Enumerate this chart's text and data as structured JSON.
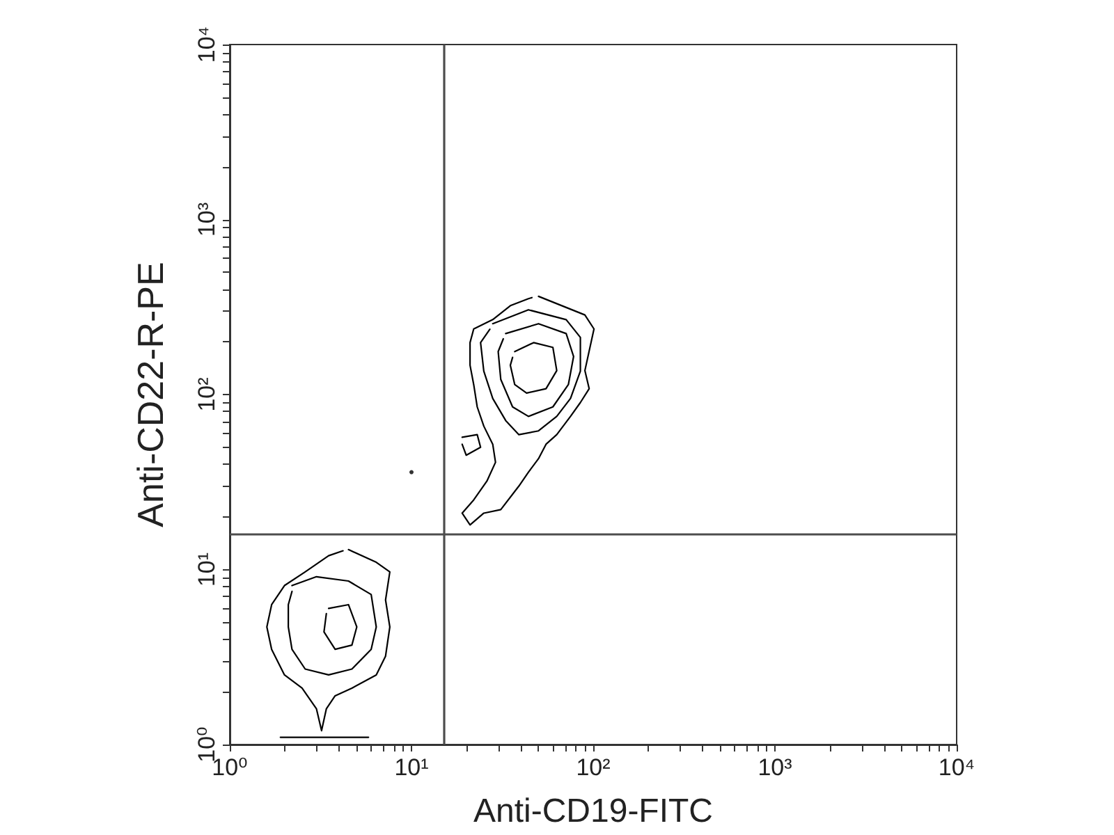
{
  "chart_data": {
    "type": "line",
    "xlabel": "Anti-CD19-FITC",
    "ylabel": "Anti-CD22-R-PE",
    "log": "xy",
    "marker": "none",
    "line_style": "solid",
    "xlim": [
      1,
      10000
    ],
    "ylim": [
      1,
      10000
    ],
    "xticks": [
      {
        "value": 1,
        "label": "10⁰"
      },
      {
        "value": 2,
        "label": null
      },
      {
        "value": 3,
        "label": null
      },
      {
        "value": 4,
        "label": null
      },
      {
        "value": 5,
        "label": null
      },
      {
        "value": 6,
        "label": null
      },
      {
        "value": 7,
        "label": null
      },
      {
        "value": 8,
        "label": null
      },
      {
        "value": 9,
        "label": null
      },
      {
        "value": 10,
        "label": "10¹"
      },
      {
        "value": 20,
        "label": null
      },
      {
        "value": 30,
        "label": null
      },
      {
        "value": 40,
        "label": null
      },
      {
        "value": 50,
        "label": null
      },
      {
        "value": 60,
        "label": null
      },
      {
        "value": 70,
        "label": null
      },
      {
        "value": 80,
        "label": null
      },
      {
        "value": 90,
        "label": null
      },
      {
        "value": 100,
        "label": "10²"
      },
      {
        "value": 200,
        "label": null
      },
      {
        "value": 300,
        "label": null
      },
      {
        "value": 400,
        "label": null
      },
      {
        "value": 500,
        "label": null
      },
      {
        "value": 600,
        "label": null
      },
      {
        "value": 700,
        "label": null
      },
      {
        "value": 800,
        "label": null
      },
      {
        "value": 900,
        "label": null
      },
      {
        "value": 1000,
        "label": "10³"
      },
      {
        "value": 2000,
        "label": null
      },
      {
        "value": 3000,
        "label": null
      },
      {
        "value": 4000,
        "label": null
      },
      {
        "value": 5000,
        "label": null
      },
      {
        "value": 6000,
        "label": null
      },
      {
        "value": 7000,
        "label": null
      },
      {
        "value": 8000,
        "label": null
      },
      {
        "value": 9000,
        "label": null
      },
      {
        "value": 10000,
        "label": "10⁴"
      }
    ],
    "yticks": [
      {
        "value": 1,
        "label": "10⁰"
      },
      {
        "value": 2,
        "label": null
      },
      {
        "value": 3,
        "label": null
      },
      {
        "value": 4,
        "label": null
      },
      {
        "value": 5,
        "label": null
      },
      {
        "value": 6,
        "label": null
      },
      {
        "value": 7,
        "label": null
      },
      {
        "value": 8,
        "label": null
      },
      {
        "value": 9,
        "label": null
      },
      {
        "value": 10,
        "label": "10¹"
      },
      {
        "value": 20,
        "label": null
      },
      {
        "value": 30,
        "label": null
      },
      {
        "value": 40,
        "label": null
      },
      {
        "value": 50,
        "label": null
      },
      {
        "value": 60,
        "label": null
      },
      {
        "value": 70,
        "label": null
      },
      {
        "value": 80,
        "label": null
      },
      {
        "value": 90,
        "label": null
      },
      {
        "value": 100,
        "label": "10²"
      },
      {
        "value": 200,
        "label": null
      },
      {
        "value": 300,
        "label": null
      },
      {
        "value": 400,
        "label": null
      },
      {
        "value": 500,
        "label": null
      },
      {
        "value": 600,
        "label": null
      },
      {
        "value": 700,
        "label": null
      },
      {
        "value": 800,
        "label": null
      },
      {
        "value": 900,
        "label": null
      },
      {
        "value": 1000,
        "label": "10³"
      },
      {
        "value": 2000,
        "label": null
      },
      {
        "value": 3000,
        "label": null
      },
      {
        "value": 4000,
        "label": null
      },
      {
        "value": 5000,
        "label": null
      },
      {
        "value": 6000,
        "label": null
      },
      {
        "value": 7000,
        "label": null
      },
      {
        "value": 8000,
        "label": null
      },
      {
        "value": 9000,
        "label": null
      },
      {
        "value": 10000,
        "label": "10⁴"
      }
    ],
    "ref_lines": [
      {
        "axis": "x",
        "value": 15,
        "color": "#4d4d4d"
      },
      {
        "axis": "y",
        "value": 16,
        "color": "#4d4d4d"
      }
    ],
    "series": [
      {
        "color": "#000000",
        "x": [
          50,
          90,
          101,
          90,
          95,
          85,
          75,
          63,
          55,
          50,
          44,
          39,
          31,
          25,
          21,
          19,
          22,
          26,
          29,
          28,
          25,
          23,
          22,
          21,
          21,
          22,
          28,
          35,
          44,
          46
        ],
        "values": [
          364,
          285,
          237,
          137,
          108,
          90,
          75,
          59,
          52,
          43,
          36,
          30,
          22,
          21,
          18,
          21,
          25,
          32,
          41,
          52,
          66,
          85,
          114,
          147,
          198,
          237,
          268,
          322,
          353,
          358
        ]
      },
      {
        "color": "#000000",
        "x": [
          19,
          23,
          24,
          20,
          19
        ],
        "values": [
          57,
          59,
          50,
          45,
          52
        ]
      },
      {
        "color": "#000000",
        "x": [
          28,
          44,
          71,
          85,
          85,
          75,
          63,
          50,
          39,
          33,
          28,
          25,
          24,
          27
        ],
        "values": [
          254,
          305,
          268,
          212,
          136,
          95,
          75,
          62,
          59,
          71,
          95,
          136,
          198,
          236
        ]
      },
      {
        "color": "#000000",
        "x": [
          33,
          50,
          71,
          78,
          73,
          60,
          44,
          36,
          31,
          30,
          32
        ],
        "values": [
          223,
          254,
          223,
          165,
          114,
          85,
          75,
          85,
          122,
          176,
          208
        ]
      },
      {
        "color": "#000000",
        "x": [
          37,
          47,
          60,
          63,
          55,
          43,
          37,
          35,
          36
        ],
        "values": [
          176,
          198,
          186,
          137,
          108,
          102,
          114,
          147,
          163
        ]
      },
      {
        "color": "#000000",
        "x": [
          4.5,
          6.4,
          7.6,
          7.2,
          7.6,
          7.2,
          6.4,
          4.7,
          3.8,
          3.4,
          3.2,
          3.0,
          2.5,
          2.0,
          1.7,
          1.6,
          1.7,
          2.0,
          2.6,
          3.5,
          4.2
        ],
        "values": [
          13,
          11,
          9.7,
          6.7,
          4.7,
          3.2,
          2.5,
          2.1,
          1.9,
          1.6,
          1.2,
          1.6,
          2.1,
          2.5,
          3.5,
          4.7,
          6.3,
          8.1,
          9.7,
          12,
          12.8
        ]
      },
      {
        "color": "#000000",
        "x": [
          2.2,
          3.0,
          4.5,
          6.0,
          6.4,
          6.0,
          4.7,
          3.5,
          2.6,
          2.2,
          2.1,
          2.1,
          2.2
        ],
        "values": [
          8.1,
          9.1,
          8.6,
          7.2,
          4.7,
          3.5,
          2.7,
          2.5,
          2.7,
          3.5,
          4.7,
          6.3,
          7.5
        ]
      },
      {
        "color": "#000000",
        "x": [
          3.5,
          4.5,
          5.0,
          4.7,
          3.8,
          3.3,
          3.4
        ],
        "values": [
          6.0,
          6.3,
          4.7,
          3.7,
          3.5,
          4.4,
          5.6
        ]
      },
      {
        "color": "#000000",
        "x": [
          1.9,
          5.8
        ],
        "values": [
          1.1,
          1.1
        ]
      },
      {
        "type": "scatter",
        "marker": "circle",
        "color": "#000000",
        "x": [
          10
        ],
        "values": [
          36
        ]
      }
    ]
  }
}
